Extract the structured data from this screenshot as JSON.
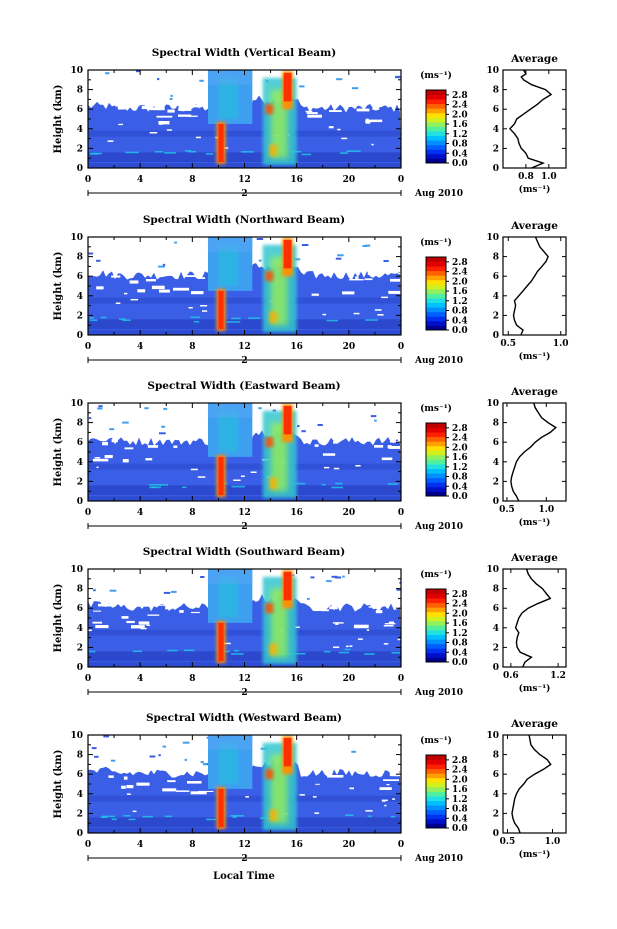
{
  "chart_data": {
    "type": "heatmap",
    "panels": [
      {
        "title": "Spectral Width (Vertical Beam)",
        "profile": [
          [
            0,
            0.85
          ],
          [
            0.5,
            0.95
          ],
          [
            1,
            0.82
          ],
          [
            1.5,
            0.8
          ],
          [
            2,
            0.76
          ],
          [
            2.5,
            0.74
          ],
          [
            3,
            0.73
          ],
          [
            3.5,
            0.7
          ],
          [
            4,
            0.66
          ],
          [
            4.5,
            0.7
          ],
          [
            5,
            0.72
          ],
          [
            5.5,
            0.78
          ],
          [
            6,
            0.84
          ],
          [
            6.5,
            0.9
          ],
          [
            7,
            0.95
          ],
          [
            7.5,
            1.02
          ],
          [
            8,
            0.97
          ],
          [
            8.5,
            0.85
          ],
          [
            9,
            0.78
          ],
          [
            9.3,
            0.76
          ],
          [
            9.6,
            0.8
          ],
          [
            10,
            0.78
          ]
        ],
        "profile_xticks": [
          "0.8",
          "1.0"
        ],
        "profile_xrange": [
          0.6,
          1.15
        ]
      },
      {
        "title": "Spectral Width (Northward Beam)",
        "profile": [
          [
            0,
            0.62
          ],
          [
            0.5,
            0.64
          ],
          [
            1,
            0.58
          ],
          [
            1.5,
            0.56
          ],
          [
            2,
            0.55
          ],
          [
            2.5,
            0.56
          ],
          [
            3,
            0.57
          ],
          [
            3.5,
            0.56
          ],
          [
            4,
            0.6
          ],
          [
            4.5,
            0.64
          ],
          [
            5,
            0.68
          ],
          [
            5.5,
            0.72
          ],
          [
            6,
            0.75
          ],
          [
            6.5,
            0.78
          ],
          [
            7,
            0.82
          ],
          [
            7.5,
            0.86
          ],
          [
            8,
            0.88
          ],
          [
            8.5,
            0.84
          ],
          [
            9,
            0.8
          ],
          [
            9.5,
            0.78
          ],
          [
            10,
            0.76
          ]
        ],
        "profile_xticks": [
          "0.5",
          "1.0"
        ],
        "profile_xrange": [
          0.45,
          1.05
        ]
      },
      {
        "title": "Spectral Width (Eastward Beam)",
        "profile": [
          [
            0,
            0.65
          ],
          [
            0.5,
            0.62
          ],
          [
            1,
            0.58
          ],
          [
            1.5,
            0.56
          ],
          [
            2,
            0.55
          ],
          [
            2.5,
            0.56
          ],
          [
            3,
            0.58
          ],
          [
            3.5,
            0.6
          ],
          [
            4,
            0.62
          ],
          [
            4.5,
            0.66
          ],
          [
            5,
            0.72
          ],
          [
            5.5,
            0.8
          ],
          [
            6,
            0.86
          ],
          [
            6.5,
            0.94
          ],
          [
            7,
            1.05
          ],
          [
            7.5,
            1.12
          ],
          [
            8,
            1.02
          ],
          [
            8.5,
            0.94
          ],
          [
            9,
            0.9
          ],
          [
            9.5,
            0.86
          ],
          [
            10,
            0.84
          ]
        ],
        "profile_xticks": [
          "0.5",
          "1.0"
        ],
        "profile_xrange": [
          0.45,
          1.25
        ]
      },
      {
        "title": "Spectral Width (Southward Beam)",
        "profile": [
          [
            0,
            0.75
          ],
          [
            0.5,
            0.78
          ],
          [
            1,
            0.86
          ],
          [
            1.5,
            0.72
          ],
          [
            2,
            0.68
          ],
          [
            2.5,
            0.67
          ],
          [
            3,
            0.68
          ],
          [
            3.5,
            0.7
          ],
          [
            4,
            0.66
          ],
          [
            4.5,
            0.68
          ],
          [
            5,
            0.7
          ],
          [
            5.5,
            0.74
          ],
          [
            6,
            0.82
          ],
          [
            6.5,
            0.95
          ],
          [
            7,
            1.1
          ],
          [
            7.5,
            1.05
          ],
          [
            8,
            1.0
          ],
          [
            8.5,
            0.92
          ],
          [
            9,
            0.86
          ],
          [
            9.5,
            0.82
          ],
          [
            10,
            0.8
          ]
        ],
        "profile_xticks": [
          "0.6",
          "1.2"
        ],
        "profile_xrange": [
          0.5,
          1.3
        ]
      },
      {
        "title": "Spectral Width (Westward Beam)",
        "profile": [
          [
            0,
            0.64
          ],
          [
            0.5,
            0.62
          ],
          [
            1,
            0.58
          ],
          [
            1.5,
            0.56
          ],
          [
            2,
            0.55
          ],
          [
            2.5,
            0.56
          ],
          [
            3,
            0.57
          ],
          [
            3.5,
            0.58
          ],
          [
            4,
            0.6
          ],
          [
            4.5,
            0.63
          ],
          [
            5,
            0.68
          ],
          [
            5.5,
            0.72
          ],
          [
            6,
            0.8
          ],
          [
            6.5,
            0.9
          ],
          [
            7,
            0.98
          ],
          [
            7.5,
            0.94
          ],
          [
            8,
            0.86
          ],
          [
            8.5,
            0.8
          ],
          [
            9,
            0.76
          ],
          [
            9.5,
            0.75
          ],
          [
            10,
            0.74
          ]
        ],
        "profile_xticks": [
          "0.5",
          "1.0"
        ],
        "profile_xrange": [
          0.45,
          1.15
        ]
      }
    ],
    "ylabel": "Height (km)",
    "ylim": [
      0,
      10
    ],
    "yticks": [
      "0",
      "2",
      "4",
      "6",
      "8",
      "10"
    ],
    "xlim": [
      0,
      24
    ],
    "xticks": [
      "0",
      "4",
      "8",
      "12",
      "16",
      "20",
      "0"
    ],
    "date_day": "2",
    "date_label": "Aug 2010",
    "xlabel": "Local Time",
    "colorbar_unit": "(ms⁻¹)",
    "colorbar_levels": [
      "0.0",
      "0.4",
      "0.8",
      "1.2",
      "1.6",
      "2.0",
      "2.4",
      "2.8"
    ],
    "colorbar_range": [
      0,
      3.0
    ],
    "colorbar_colors": [
      "#000090",
      "#0010c8",
      "#0030f0",
      "#0060ff",
      "#0090ff",
      "#00c0ff",
      "#20e0e0",
      "#50f0a0",
      "#90f060",
      "#d0f020",
      "#ffe000",
      "#ffa000",
      "#ff6000",
      "#ff2000",
      "#e00000",
      "#c00000"
    ],
    "profile_title": "Average",
    "profile_unit": "(ms⁻¹)",
    "colors": {
      "heat_base": "#3a5ee6",
      "heat_dark": "#2038b8",
      "cloud": "#3e9ff0",
      "hot": "#ff3000"
    }
  }
}
